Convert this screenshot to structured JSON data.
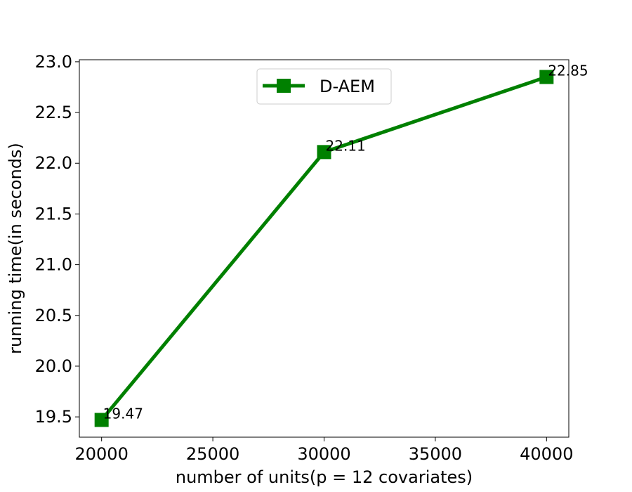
{
  "chart_data": {
    "type": "line",
    "xlabel": "number of units(p = 12 covariates)",
    "ylabel": "running time(in seconds)",
    "xlim": [
      19000,
      41000
    ],
    "ylim": [
      19.3,
      23.02
    ],
    "xticks": [
      20000,
      25000,
      30000,
      35000,
      40000
    ],
    "xtick_labels": [
      "20000",
      "25000",
      "30000",
      "35000",
      "40000"
    ],
    "yticks": [
      19.5,
      20.0,
      20.5,
      21.0,
      21.5,
      22.0,
      22.5,
      23.0
    ],
    "ytick_labels": [
      "19.5",
      "20.0",
      "20.5",
      "21.0",
      "21.5",
      "22.0",
      "22.5",
      "23.0"
    ],
    "legend_position": "top-center",
    "grid": false,
    "series": [
      {
        "name": "D-AEM",
        "color": "#008000",
        "marker": "square",
        "x": [
          20000,
          30000,
          40000
        ],
        "y": [
          19.47,
          22.11,
          22.85
        ],
        "labels": [
          "19.47",
          "22.11",
          "22.85"
        ]
      }
    ]
  }
}
